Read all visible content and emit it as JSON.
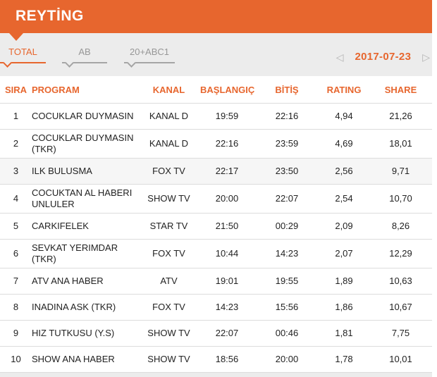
{
  "header": {
    "title": "REYTİNG"
  },
  "tabs": [
    {
      "label": "TOTAL",
      "active": true
    },
    {
      "label": "AB",
      "active": false
    },
    {
      "label": "20+ABC1",
      "active": false
    }
  ],
  "date_nav": {
    "prev_icon": "◁",
    "date": "2017-07-23",
    "next_icon": "▷"
  },
  "table": {
    "columns": [
      "SIRA",
      "PROGRAM",
      "KANAL",
      "BAŞLANGIÇ",
      "BİTİŞ",
      "RATING",
      "SHARE"
    ],
    "rows": [
      {
        "sira": "1",
        "program": "COCUKLAR DUYMASIN",
        "kanal": "KANAL D",
        "baslangic": "19:59",
        "bitis": "22:16",
        "rating": "4,94",
        "share": "21,26",
        "highlight": false
      },
      {
        "sira": "2",
        "program": "COCUKLAR DUYMASIN (TKR)",
        "kanal": "KANAL D",
        "baslangic": "22:16",
        "bitis": "23:59",
        "rating": "4,69",
        "share": "18,01",
        "highlight": false
      },
      {
        "sira": "3",
        "program": "ILK BULUSMA",
        "kanal": "FOX TV",
        "baslangic": "22:17",
        "bitis": "23:50",
        "rating": "2,56",
        "share": "9,71",
        "highlight": true
      },
      {
        "sira": "4",
        "program": "COCUKTAN AL HABERI UNLULER",
        "kanal": "SHOW TV",
        "baslangic": "20:00",
        "bitis": "22:07",
        "rating": "2,54",
        "share": "10,70",
        "highlight": false
      },
      {
        "sira": "5",
        "program": "CARKIFELEK",
        "kanal": "STAR TV",
        "baslangic": "21:50",
        "bitis": "00:29",
        "rating": "2,09",
        "share": "8,26",
        "highlight": false
      },
      {
        "sira": "6",
        "program": "SEVKAT YERIMDAR (TKR)",
        "kanal": "FOX TV",
        "baslangic": "10:44",
        "bitis": "14:23",
        "rating": "2,07",
        "share": "12,29",
        "highlight": false
      },
      {
        "sira": "7",
        "program": "ATV ANA HABER",
        "kanal": "ATV",
        "baslangic": "19:01",
        "bitis": "19:55",
        "rating": "1,89",
        "share": "10,63",
        "highlight": false
      },
      {
        "sira": "8",
        "program": "INADINA ASK (TKR)",
        "kanal": "FOX TV",
        "baslangic": "14:23",
        "bitis": "15:56",
        "rating": "1,86",
        "share": "10,67",
        "highlight": false
      },
      {
        "sira": "9",
        "program": "HIZ TUTKUSU (Y.S)",
        "kanal": "SHOW TV",
        "baslangic": "22:07",
        "bitis": "00:46",
        "rating": "1,81",
        "share": "7,75",
        "highlight": false
      },
      {
        "sira": "10",
        "program": "SHOW ANA HABER",
        "kanal": "SHOW TV",
        "baslangic": "18:56",
        "bitis": "20:00",
        "rating": "1,78",
        "share": "10,01",
        "highlight": false
      }
    ]
  },
  "colors": {
    "accent": "#e7662e",
    "page_background": "#ececec",
    "row_border": "#dcdcdc",
    "highlighted_row": "#f6f6f6",
    "inactive_tab": "#979797",
    "cell_text": "#222222"
  }
}
